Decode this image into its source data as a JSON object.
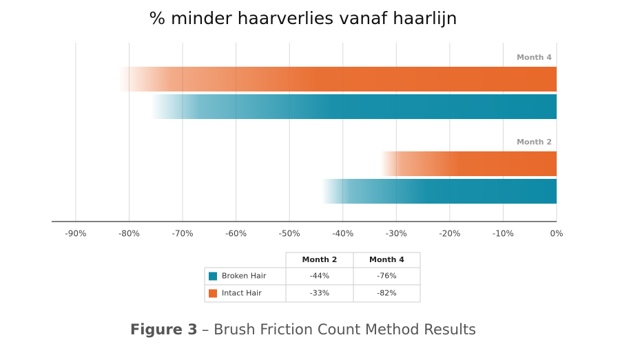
{
  "chart_data": {
    "type": "bar",
    "title": "% minder haarverlies vanaf haarlijn",
    "categories": [
      "Month 4",
      "Month 2"
    ],
    "series": [
      {
        "name": "Broken Hair",
        "color": "#0e8aa6",
        "values": [
          -76,
          -44
        ],
        "value_labels": [
          "-76%",
          "-44%"
        ]
      },
      {
        "name": "Intact Hair",
        "color": "#e8692a",
        "values": [
          -82,
          -33
        ],
        "value_labels": [
          "-82%",
          "-33%"
        ]
      }
    ],
    "xlim": [
      -94.5,
      0
    ],
    "xticks": [
      {
        "value": -90,
        "label": "-90%"
      },
      {
        "value": -80,
        "label": "-80%"
      },
      {
        "value": -70,
        "label": "-70%"
      },
      {
        "value": -60,
        "label": "-60%"
      },
      {
        "value": -50,
        "label": "-50%"
      },
      {
        "value": -40,
        "label": "-40%"
      },
      {
        "value": -30,
        "label": "-30%"
      },
      {
        "value": -20,
        "label": "-20%"
      },
      {
        "value": -10,
        "label": "-10%"
      },
      {
        "value": 0,
        "label": "0%"
      }
    ],
    "grid": true,
    "caption_label": "Figure 3",
    "caption": "– Brush Friction Count Method Results"
  }
}
